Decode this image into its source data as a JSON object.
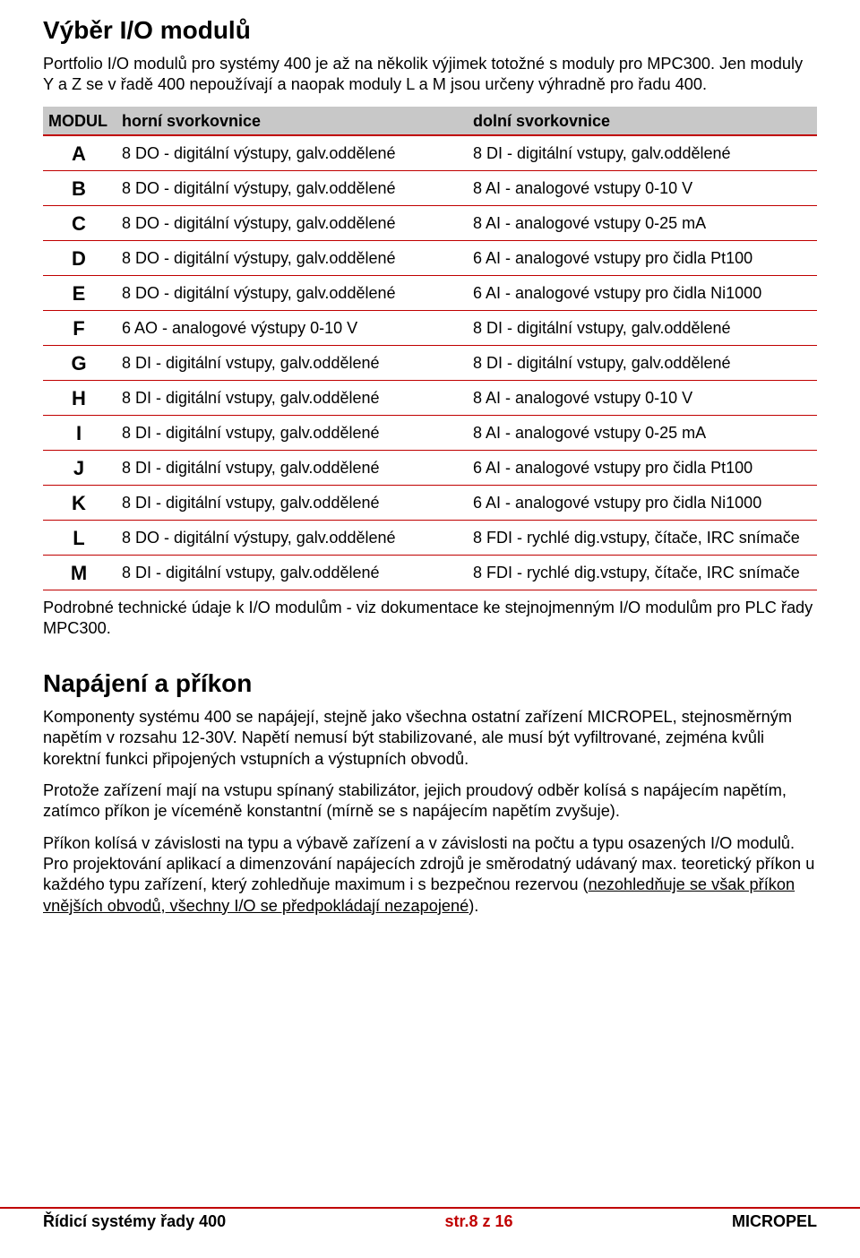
{
  "title1": "Výběr I/O modulů",
  "p1": "Portfolio I/O modulů pro systémy 400 je až na několik výjimek totožné s moduly pro MPC300. Jen moduly Y a Z se v řadě 400 nepoužívají a naopak moduly L a M jsou určeny výhradně pro řadu 400.",
  "table": {
    "headers": {
      "c1": "MODUL",
      "c2": "horní svorkovnice",
      "c3": "dolní svorkovnice"
    },
    "rows": [
      {
        "m": "A",
        "h": "8 DO - digitální výstupy, galv.oddělené",
        "d": "8 DI  - digitální vstupy, galv.oddělené"
      },
      {
        "m": "B",
        "h": "8 DO - digitální výstupy, galv.oddělené",
        "d": "8 AI - analogové vstupy 0-10 V"
      },
      {
        "m": "C",
        "h": "8 DO - digitální výstupy, galv.oddělené",
        "d": "8 AI - analogové vstupy 0-25 mA"
      },
      {
        "m": "D",
        "h": "8 DO - digitální výstupy, galv.oddělené",
        "d": "6 AI - analogové vstupy pro čidla Pt100"
      },
      {
        "m": "E",
        "h": "8 DO - digitální výstupy, galv.oddělené",
        "d": "6 AI - analogové vstupy pro čidla Ni1000"
      },
      {
        "m": "F",
        "h": "6 AO - analogové výstupy 0-10 V",
        "d": "8 DI  - digitální vstupy, galv.oddělené"
      },
      {
        "m": "G",
        "h": "8 DI  - digitální vstupy, galv.oddělené",
        "d": "8 DI  - digitální vstupy, galv.oddělené"
      },
      {
        "m": "H",
        "h": "8 DI  - digitální vstupy, galv.oddělené",
        "d": "8 AI - analogové vstupy 0-10 V"
      },
      {
        "m": "I",
        "h": "8 DI  - digitální vstupy, galv.oddělené",
        "d": "8 AI - analogové vstupy 0-25 mA"
      },
      {
        "m": "J",
        "h": "8 DI  - digitální vstupy, galv.oddělené",
        "d": "6 AI - analogové vstupy pro čidla Pt100"
      },
      {
        "m": "K",
        "h": "8 DI  - digitální vstupy, galv.oddělené",
        "d": "6 AI - analogové vstupy pro čidla Ni1000"
      },
      {
        "m": "L",
        "h": "8 DO - digitální výstupy, galv.oddělené",
        "d": "8 FDI  -  rychlé dig.vstupy, čítače, IRC snímače"
      },
      {
        "m": "M",
        "h": "8 DI  - digitální vstupy, galv.oddělené",
        "d": "8 FDI  -  rychlé dig.vstupy, čítače, IRC snímače"
      }
    ]
  },
  "p2": "Podrobné technické údaje k I/O modulům - viz dokumentace ke stejnojmenným I/O modulům pro PLC řady MPC300.",
  "title2": "Napájení a příkon",
  "p3": "Komponenty systému 400 se napájejí, stejně jako všechna ostatní zařízení MICROPEL, stejnosměrným napětím v rozsahu 12-30V. Napětí nemusí být stabilizované, ale musí být vyfiltrované, zejména kvůli korektní funkci připojených vstupních a výstupních obvodů.",
  "p4": "Protože zařízení mají na vstupu spínaný stabilizátor, jejich proudový odběr kolísá s napájecím napětím, zatímco příkon je víceméně konstantní (mírně se s napájecím napětím zvyšuje).",
  "p5a": "Příkon kolísá v závislosti na typu a výbavě zařízení a v závislosti na počtu a typu osazených I/O modulů. Pro projektování aplikací a dimenzování napájecích zdrojů je směrodatný udávaný max. teoretický příkon u každého typu zařízení, který zohledňuje maximum i s bezpečnou rezervou (",
  "p5u": "nezohledňuje se však příkon vnějších obvodů, všechny I/O se předpokládají nezapojené",
  "p5b": ").",
  "footer": {
    "left": "Řídicí systémy řady 400",
    "mid": "str.8 z 16",
    "right": "MICROPEL"
  },
  "colors": {
    "rule": "#c00000",
    "header_bg": "#c8c8c8"
  }
}
